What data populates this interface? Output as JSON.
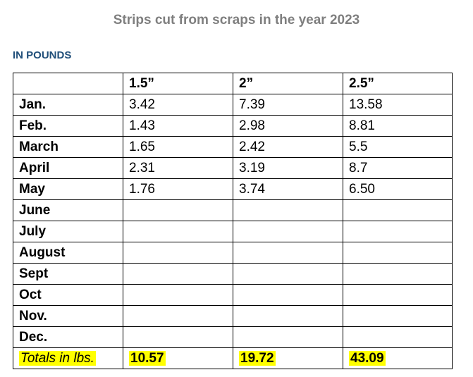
{
  "title": "Strips cut from scraps in the year 2023",
  "subtitle": "IN POUNDS",
  "table": {
    "header": [
      "1.5”",
      "2”",
      "2.5”"
    ],
    "rows": [
      [
        "Jan.",
        "3.42",
        "7.39",
        "13.58"
      ],
      [
        "Feb.",
        "1.43",
        "2.98",
        "8.81"
      ],
      [
        "March",
        "1.65",
        "2.42",
        "5.5"
      ],
      [
        "April",
        "2.31",
        "3.19",
        "8.7"
      ],
      [
        "May",
        "1.76",
        "3.74",
        "6.50"
      ],
      [
        "June"
      ],
      [
        "July"
      ],
      [
        "August"
      ],
      [
        "Sept"
      ],
      [
        "Oct"
      ],
      [
        "Nov."
      ],
      [
        "Dec."
      ]
    ],
    "totals": {
      "label": "Totals in lbs.",
      "values": [
        "10.57",
        "19.72",
        "43.09"
      ]
    }
  }
}
